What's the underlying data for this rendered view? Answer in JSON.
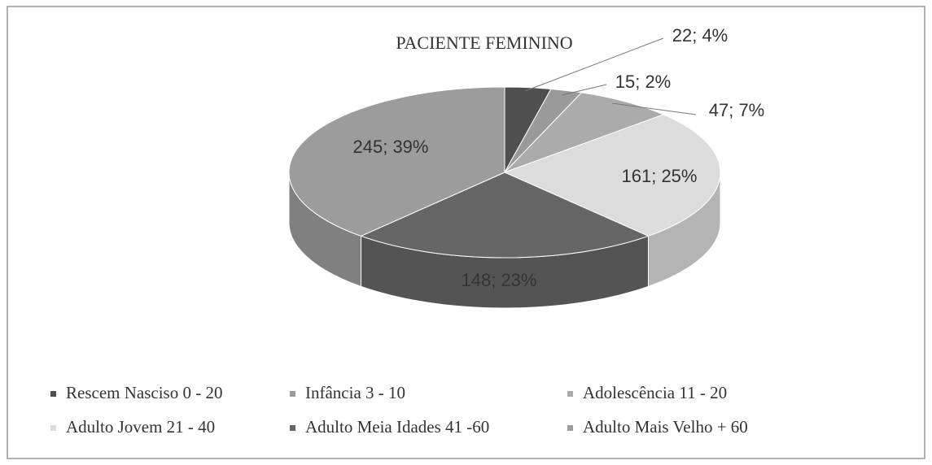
{
  "chart_data": {
    "type": "pie",
    "title": "PACIENTE FEMININO",
    "categories": [
      "Rescem Nasciso 0 - 20",
      "Infância 3 - 10",
      "Adolescência 11 - 20",
      "Adulto Jovem 21 - 40",
      "Adulto Meia Idades 41 -60",
      "Adulto Mais Velho + 60"
    ],
    "values": [
      22,
      15,
      47,
      161,
      148,
      245
    ],
    "value_labels": [
      "22; 4%",
      "15; 2%",
      "47; 7%",
      "161; 25%",
      "148; 23%",
      "245; 39%"
    ],
    "colors": [
      "#4f4f4f",
      "#9a9a9a",
      "#ababab",
      "#dcdcdc",
      "#666666",
      "#9c9c9c"
    ],
    "legend": "bottom"
  }
}
